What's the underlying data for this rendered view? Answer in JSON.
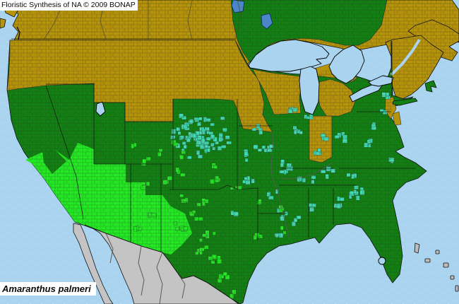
{
  "attribution": {
    "text": "Floristic Synthesis of NA © 2009 BONAP"
  },
  "species": {
    "label": "Amaranthus palmeri"
  },
  "map_colors": {
    "ocean": "#A9D3EE",
    "absent": "#B6940C",
    "present": "#128012",
    "region": "#24E924",
    "county": "#43DFB4",
    "outside": "#C4C4C4"
  }
}
